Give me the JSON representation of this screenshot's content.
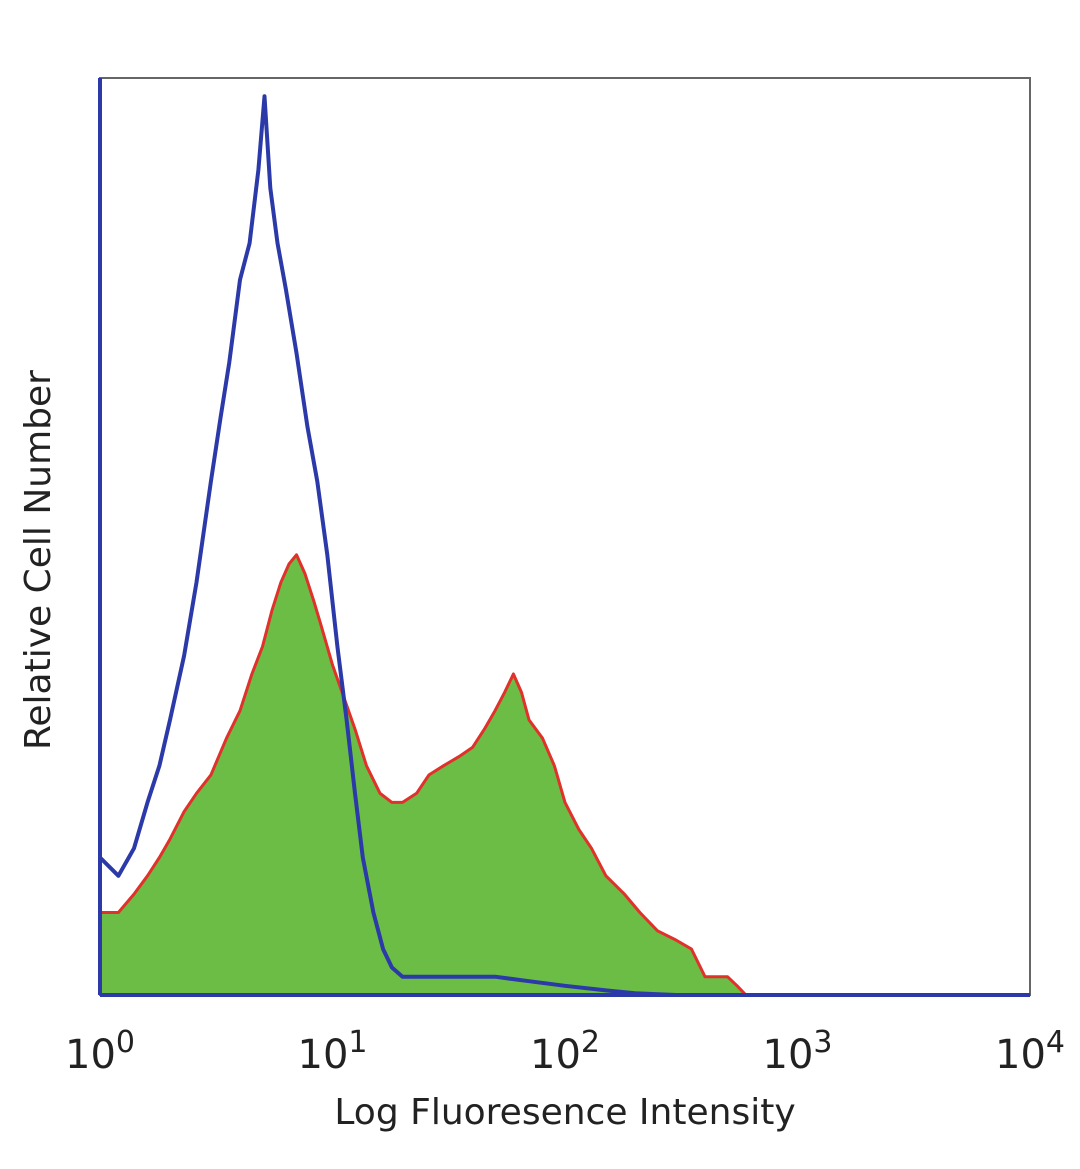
{
  "chart_data": {
    "type": "area",
    "xlabel": "Log Fluoresence Intensity",
    "ylabel": "Relative Cell Number",
    "x_scale": "log",
    "xlim": [
      1,
      10000
    ],
    "ylim": [
      0,
      100
    ],
    "x_ticks": [
      {
        "base": "10",
        "exp": "0",
        "value": 1
      },
      {
        "base": "10",
        "exp": "1",
        "value": 10
      },
      {
        "base": "10",
        "exp": "2",
        "value": 100
      },
      {
        "base": "10",
        "exp": "3",
        "value": 1000
      },
      {
        "base": "10",
        "exp": "4",
        "value": 10000
      }
    ],
    "grid": false,
    "legend": "none",
    "series": [
      {
        "style": "outline",
        "color": "#2b3aa8",
        "points": [
          [
            1.0,
            15
          ],
          [
            1.2,
            13
          ],
          [
            1.4,
            16
          ],
          [
            1.6,
            21
          ],
          [
            1.8,
            25
          ],
          [
            2.0,
            30
          ],
          [
            2.3,
            37
          ],
          [
            2.6,
            45
          ],
          [
            3.0,
            56
          ],
          [
            3.3,
            63
          ],
          [
            3.6,
            69
          ],
          [
            4.0,
            78
          ],
          [
            4.4,
            82
          ],
          [
            4.8,
            90
          ],
          [
            5.1,
            98
          ],
          [
            5.4,
            88
          ],
          [
            5.8,
            82
          ],
          [
            6.3,
            77
          ],
          [
            7.0,
            70
          ],
          [
            7.8,
            62
          ],
          [
            8.6,
            56
          ],
          [
            9.5,
            48
          ],
          [
            10.5,
            38
          ],
          [
            11.5,
            30
          ],
          [
            12.5,
            22
          ],
          [
            13.5,
            15
          ],
          [
            15.0,
            9
          ],
          [
            16.5,
            5
          ],
          [
            18.0,
            3
          ],
          [
            20.0,
            2
          ],
          [
            25.0,
            2
          ],
          [
            35.0,
            2
          ],
          [
            50.0,
            2
          ],
          [
            70.0,
            1.5
          ],
          [
            100.0,
            1
          ],
          [
            150.0,
            0.5
          ],
          [
            200.0,
            0.2
          ],
          [
            300.0,
            0
          ],
          [
            10000.0,
            0
          ]
        ]
      },
      {
        "style": "filled",
        "fill": "#6cbd45",
        "stroke": "#e0312b",
        "points": [
          [
            1.0,
            9
          ],
          [
            1.2,
            9
          ],
          [
            1.4,
            11
          ],
          [
            1.6,
            13
          ],
          [
            1.8,
            15
          ],
          [
            2.0,
            17
          ],
          [
            2.3,
            20
          ],
          [
            2.6,
            22
          ],
          [
            3.0,
            24
          ],
          [
            3.5,
            28
          ],
          [
            4.0,
            31
          ],
          [
            4.5,
            35
          ],
          [
            5.0,
            38
          ],
          [
            5.5,
            42
          ],
          [
            6.0,
            45
          ],
          [
            6.5,
            47
          ],
          [
            7.0,
            48
          ],
          [
            7.6,
            46
          ],
          [
            8.3,
            43
          ],
          [
            9.0,
            40
          ],
          [
            10.0,
            36
          ],
          [
            11.0,
            33
          ],
          [
            12.5,
            29
          ],
          [
            14.0,
            25
          ],
          [
            16.0,
            22
          ],
          [
            18.0,
            21
          ],
          [
            20.0,
            21
          ],
          [
            23.0,
            22
          ],
          [
            26.0,
            24
          ],
          [
            30.0,
            25
          ],
          [
            35.0,
            26
          ],
          [
            40.0,
            27
          ],
          [
            45.0,
            29
          ],
          [
            50.0,
            31
          ],
          [
            55.0,
            33
          ],
          [
            60.0,
            35
          ],
          [
            65.0,
            33
          ],
          [
            70.0,
            30
          ],
          [
            80.0,
            28
          ],
          [
            90.0,
            25
          ],
          [
            100.0,
            21
          ],
          [
            115.0,
            18
          ],
          [
            130.0,
            16
          ],
          [
            150.0,
            13
          ],
          [
            180.0,
            11
          ],
          [
            210.0,
            9
          ],
          [
            250.0,
            7
          ],
          [
            300.0,
            6
          ],
          [
            350.0,
            5
          ],
          [
            400.0,
            2
          ],
          [
            450.0,
            2
          ],
          [
            500.0,
            2
          ],
          [
            550.0,
            1
          ],
          [
            600.0,
            0
          ],
          [
            10000.0,
            0
          ]
        ]
      }
    ]
  },
  "colors": {
    "axis": "#2b3aa8",
    "frame": "#666666"
  }
}
